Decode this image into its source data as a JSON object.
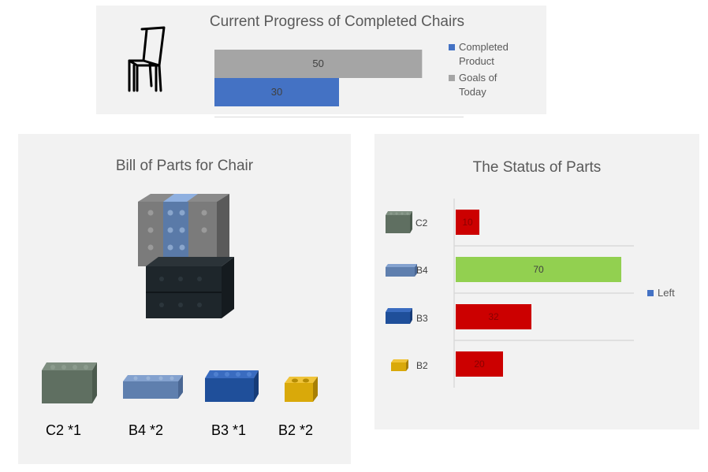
{
  "progress_panel": {
    "title": "Current Progress of Completed Chairs",
    "icon": "chair-icon",
    "legend": [
      {
        "label_lines": [
          "Completed",
          "Product"
        ],
        "color": "#4472c4"
      },
      {
        "label_lines": [
          "Goals of",
          "Today"
        ],
        "color": "#a5a5a5"
      }
    ]
  },
  "bom_panel": {
    "title": "Bill of Parts for  Chair",
    "bricks": [
      {
        "name": "C2",
        "label": "C2 *1",
        "color": "#5f6f61"
      },
      {
        "name": "B4",
        "label": "B4 *2",
        "color": "#5f7fae"
      },
      {
        "name": "B3",
        "label": "B3 *1",
        "color": "#1f4f9a"
      },
      {
        "name": "B2",
        "label": "B2 *2",
        "color": "#d9a90a"
      }
    ]
  },
  "status_panel": {
    "title": "The Status of Parts",
    "legend_label": "Left",
    "legend_color": "#4472c4"
  },
  "chart_data": [
    {
      "type": "bar",
      "orientation": "horizontal",
      "title": "Current Progress of Completed Chairs",
      "series": [
        {
          "name": "Goals of Today",
          "values": [
            50
          ],
          "color": "#a5a5a5"
        },
        {
          "name": "Completed Product",
          "values": [
            30
          ],
          "color": "#4472c4"
        }
      ],
      "xlim": [
        0,
        60
      ],
      "legend": "right",
      "grid": false
    },
    {
      "type": "bar",
      "orientation": "horizontal",
      "title": "The Status of Parts",
      "categories": [
        "C2",
        "B4",
        "B3",
        "B2"
      ],
      "series": [
        {
          "name": "Left",
          "values": [
            10,
            70,
            32,
            20
          ],
          "colors": [
            "#cc0000",
            "#92d050",
            "#cc0000",
            "#cc0000"
          ]
        }
      ],
      "xlim": [
        0,
        80
      ],
      "legend": "right",
      "grid": true
    }
  ]
}
